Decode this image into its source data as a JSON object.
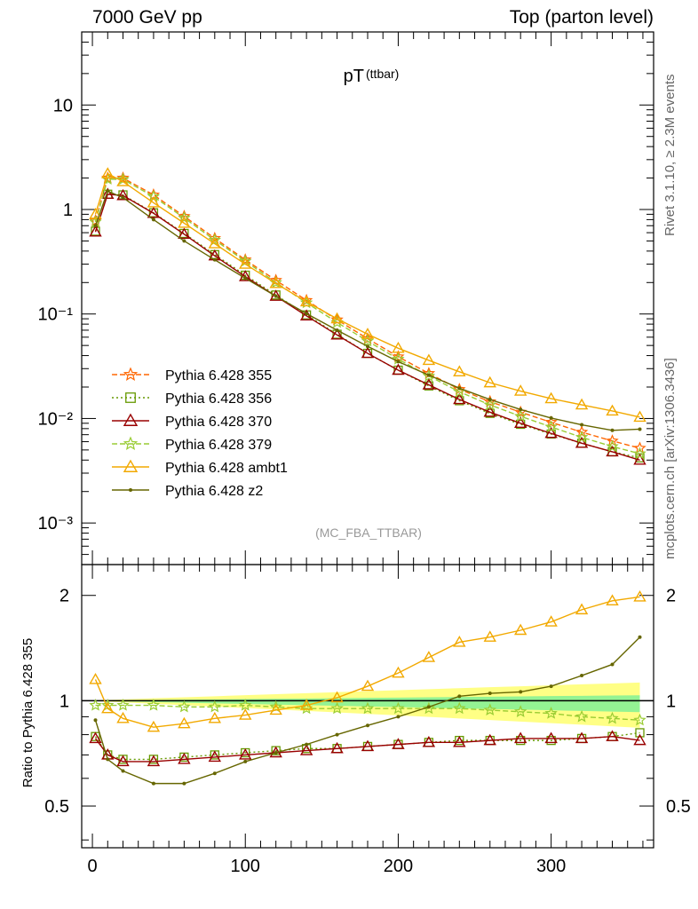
{
  "header": {
    "left": "7000 GeV pp",
    "right": "Top (parton level)"
  },
  "side": {
    "rivet": "Rivet 3.1.10, ≥ 2.3M events",
    "mcplots": "mcplots.cern.ch [arXiv:1306.3436]"
  },
  "plot": {
    "title_main": "pT",
    "title_sub": "(ttbar)",
    "analysis": "(MC_FBA_TTBAR)",
    "ratio_ylabel": "Ratio to Pythia 6.428 355"
  },
  "chart_data": [
    {
      "type": "line",
      "panel": "main",
      "yscale": "log",
      "ylim": [
        0.0004,
        50
      ],
      "xlim": [
        -7,
        367
      ],
      "ytick_labels": [
        "10",
        "1",
        "10⁻¹",
        "10⁻²",
        "10⁻³"
      ],
      "yticks": [
        10,
        1,
        0.1,
        0.01,
        0.001
      ],
      "x": [
        2,
        10,
        20,
        40,
        60,
        80,
        100,
        120,
        140,
        160,
        180,
        200,
        220,
        240,
        260,
        280,
        300,
        320,
        340,
        358
      ],
      "series": [
        {
          "name": "Pythia 6.428 355",
          "color": "#ff6600",
          "marker": "star",
          "dash": "6,3",
          "values": [
            0.78,
            2.0,
            2.0,
            1.38,
            0.86,
            0.53,
            0.33,
            0.21,
            0.135,
            0.088,
            0.058,
            0.039,
            0.027,
            0.019,
            0.0145,
            0.0115,
            0.0092,
            0.0074,
            0.0061,
            0.0052
          ]
        },
        {
          "name": "Pythia 6.428 356",
          "color": "#669900",
          "marker": "square",
          "dash": "2,3",
          "values": [
            0.62,
            1.4,
            1.38,
            0.93,
            0.59,
            0.37,
            0.235,
            0.152,
            0.098,
            0.064,
            0.042,
            0.029,
            0.0205,
            0.0148,
            0.0112,
            0.0088,
            0.0071,
            0.0058,
            0.0048,
            0.0042
          ]
        },
        {
          "name": "Pythia 6.428 370",
          "color": "#990000",
          "marker": "triangle",
          "dash": "",
          "values": [
            0.61,
            1.4,
            1.36,
            0.92,
            0.58,
            0.36,
            0.228,
            0.148,
            0.096,
            0.063,
            0.042,
            0.029,
            0.021,
            0.0152,
            0.0115,
            0.009,
            0.0072,
            0.0058,
            0.0048,
            0.004
          ]
        },
        {
          "name": "Pythia 6.428 379",
          "color": "#99cc33",
          "marker": "star",
          "dash": "6,3",
          "values": [
            0.76,
            1.95,
            1.94,
            1.33,
            0.83,
            0.51,
            0.32,
            0.2,
            0.128,
            0.083,
            0.055,
            0.037,
            0.0255,
            0.018,
            0.0135,
            0.0105,
            0.0083,
            0.0066,
            0.0054,
            0.0046
          ]
        },
        {
          "name": "Pythia 6.428 ambt1",
          "color": "#f2a900",
          "marker": "triangle",
          "dash": "",
          "values": [
            0.9,
            2.2,
            1.85,
            1.16,
            0.74,
            0.47,
            0.3,
            0.196,
            0.131,
            0.09,
            0.064,
            0.047,
            0.036,
            0.028,
            0.022,
            0.0183,
            0.0155,
            0.0135,
            0.0118,
            0.0103
          ]
        },
        {
          "name": "Pythia 6.428 z2",
          "color": "#666600",
          "marker": "dot",
          "dash": "",
          "values": [
            0.7,
            1.5,
            1.3,
            0.8,
            0.5,
            0.33,
            0.22,
            0.148,
            0.101,
            0.07,
            0.049,
            0.035,
            0.026,
            0.0195,
            0.0152,
            0.0122,
            0.0101,
            0.0087,
            0.0077,
            0.0079
          ]
        }
      ]
    },
    {
      "type": "line",
      "panel": "ratio",
      "yscale": "log",
      "ylim": [
        0.38,
        2.45
      ],
      "xlim": [
        -7,
        367
      ],
      "xticks": [
        0,
        100,
        200,
        300
      ],
      "ytick_labels": [
        "2",
        "1",
        "0.5"
      ],
      "yticks": [
        2,
        1,
        0.5
      ],
      "reference": 1,
      "x": [
        2,
        10,
        20,
        40,
        60,
        80,
        100,
        120,
        140,
        160,
        180,
        200,
        220,
        240,
        260,
        280,
        300,
        320,
        340,
        358
      ],
      "series": [
        {
          "name": "Pythia 6.428 356",
          "color": "#669900",
          "values": [
            0.79,
            0.7,
            0.68,
            0.68,
            0.69,
            0.7,
            0.71,
            0.72,
            0.73,
            0.73,
            0.74,
            0.75,
            0.76,
            0.77,
            0.77,
            0.77,
            0.77,
            0.78,
            0.79,
            0.81
          ]
        },
        {
          "name": "Pythia 6.428 370",
          "color": "#990000",
          "values": [
            0.78,
            0.7,
            0.67,
            0.67,
            0.68,
            0.69,
            0.7,
            0.71,
            0.72,
            0.73,
            0.74,
            0.75,
            0.76,
            0.76,
            0.77,
            0.78,
            0.78,
            0.78,
            0.79,
            0.77
          ]
        },
        {
          "name": "Pythia 6.428 379",
          "color": "#99cc33",
          "values": [
            0.97,
            0.97,
            0.97,
            0.97,
            0.96,
            0.96,
            0.97,
            0.96,
            0.95,
            0.95,
            0.95,
            0.95,
            0.95,
            0.95,
            0.94,
            0.93,
            0.92,
            0.9,
            0.89,
            0.88
          ]
        },
        {
          "name": "Pythia 6.428 ambt1",
          "color": "#f2a900",
          "values": [
            1.15,
            0.95,
            0.89,
            0.84,
            0.86,
            0.89,
            0.91,
            0.94,
            0.97,
            1.02,
            1.1,
            1.2,
            1.33,
            1.47,
            1.52,
            1.59,
            1.68,
            1.82,
            1.93,
            1.98
          ]
        },
        {
          "name": "Pythia 6.428 z2",
          "color": "#666600",
          "values": [
            0.88,
            0.68,
            0.63,
            0.58,
            0.58,
            0.62,
            0.67,
            0.71,
            0.75,
            0.8,
            0.85,
            0.9,
            0.96,
            1.03,
            1.05,
            1.06,
            1.1,
            1.18,
            1.27,
            1.52
          ]
        }
      ]
    }
  ]
}
